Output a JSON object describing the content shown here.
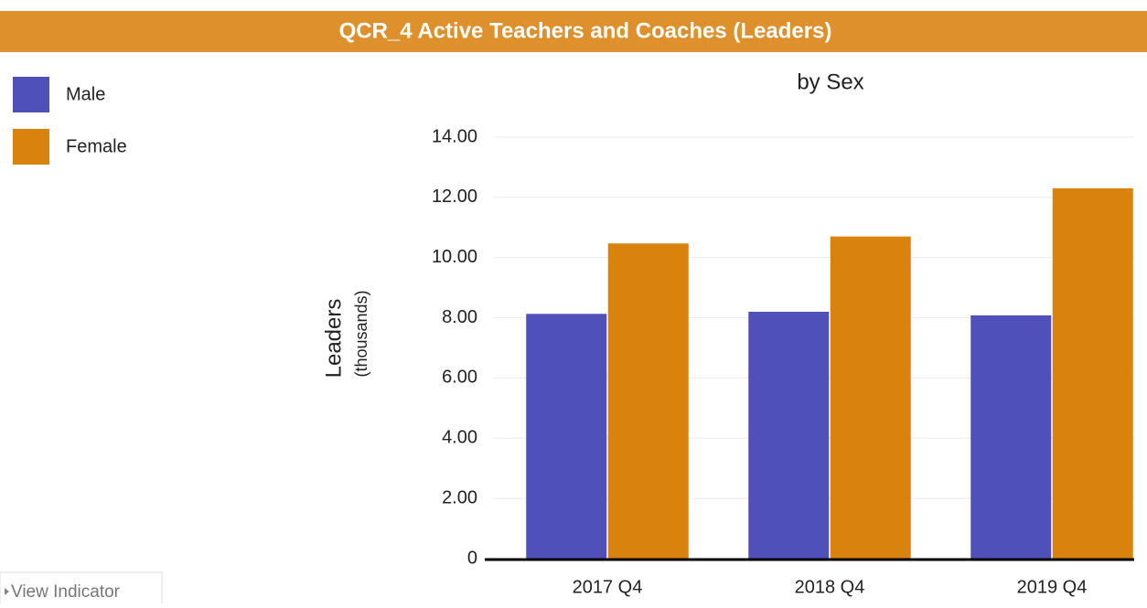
{
  "chart_data": {
    "type": "bar",
    "title": "QCR_4 Active Teachers and Coaches (Leaders)",
    "subtitle": "by Sex",
    "y_label": "Leaders",
    "y_sublabel": "(thousands)",
    "button": "View Indicator",
    "categories": [
      "2017 Q4",
      "2018 Q4",
      "2019 Q4"
    ],
    "series": [
      {
        "name": "Male",
        "color": "#5050bb",
        "values": [
          8.13,
          8.2,
          8.08
        ]
      },
      {
        "name": "Female",
        "color": "#d9820e",
        "values": [
          10.47,
          10.7,
          12.3
        ]
      }
    ],
    "ylim": [
      0,
      14
    ],
    "yticks": [
      0,
      {
        "value": 2,
        "label": "2.00"
      },
      {
        "value": 4,
        "label": "4.00"
      },
      {
        "value": 6,
        "label": "6.00"
      },
      {
        "value": 8,
        "label": "8.00"
      },
      {
        "value": 10,
        "label": "10.00"
      },
      {
        "value": 12,
        "label": "12.00"
      },
      {
        "value": 14,
        "label": "14.00"
      }
    ],
    "grid": true,
    "legend": "top-left",
    "header_color": "#de902c"
  }
}
